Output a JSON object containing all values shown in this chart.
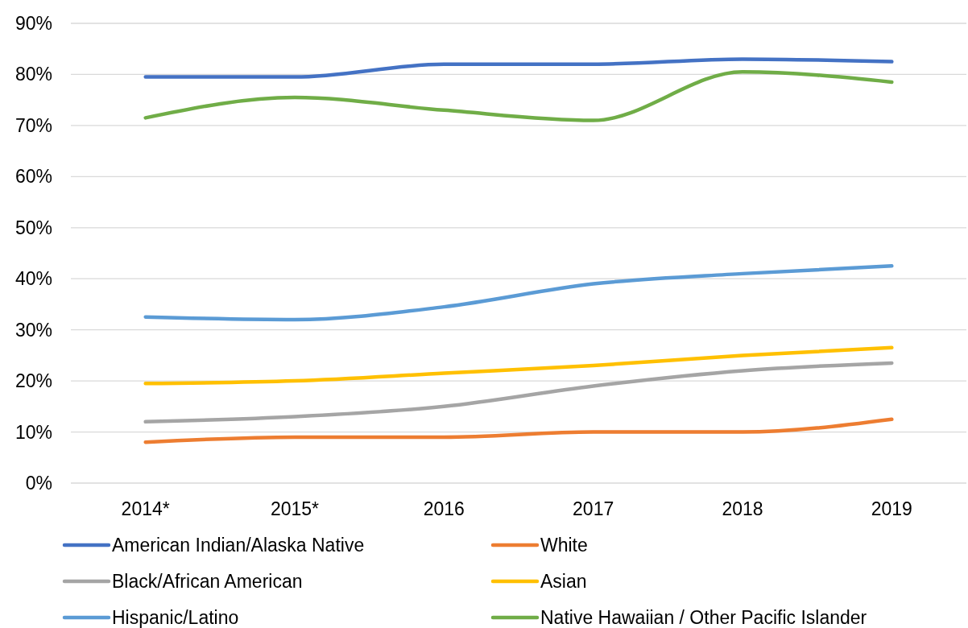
{
  "chart_data": {
    "type": "line",
    "categories": [
      "2014*",
      "2015*",
      "2016",
      "2017",
      "2018",
      "2019"
    ],
    "series": [
      {
        "name": "American Indian/Alaska Native",
        "color": "#4472c4",
        "values": [
          79.5,
          79.5,
          82,
          82,
          83,
          82.5
        ]
      },
      {
        "name": "White",
        "color": "#ed7d31",
        "values": [
          8,
          9,
          9,
          10,
          10,
          12.5
        ]
      },
      {
        "name": "Black/African American",
        "color": "#a5a5a5",
        "values": [
          12,
          13,
          15,
          19,
          22,
          23.5
        ]
      },
      {
        "name": "Asian",
        "color": "#ffc000",
        "values": [
          19.5,
          20,
          21.5,
          23,
          25,
          26.5
        ]
      },
      {
        "name": "Hispanic/Latino",
        "color": "#5b9bd5",
        "values": [
          32.5,
          32,
          34.5,
          39,
          41,
          42.5
        ]
      },
      {
        "name": "Native Hawaiian / Other Pacific Islander",
        "color": "#70ad47",
        "values": [
          71.5,
          75.5,
          73,
          71,
          80.5,
          78.5
        ]
      }
    ],
    "ylim": [
      0,
      90
    ],
    "yticks": [
      {
        "value": 0,
        "label": "0%"
      },
      {
        "value": 10,
        "label": "10%"
      },
      {
        "value": 20,
        "label": "20%"
      },
      {
        "value": 30,
        "label": "30%"
      },
      {
        "value": 40,
        "label": "40%"
      },
      {
        "value": 50,
        "label": "50%"
      },
      {
        "value": 60,
        "label": "60%"
      },
      {
        "value": 70,
        "label": "70%"
      },
      {
        "value": 80,
        "label": "80%"
      },
      {
        "value": 90,
        "label": "90%"
      }
    ],
    "grid": "y",
    "legend": "bottom",
    "marker": "none",
    "line_style": "solid"
  }
}
